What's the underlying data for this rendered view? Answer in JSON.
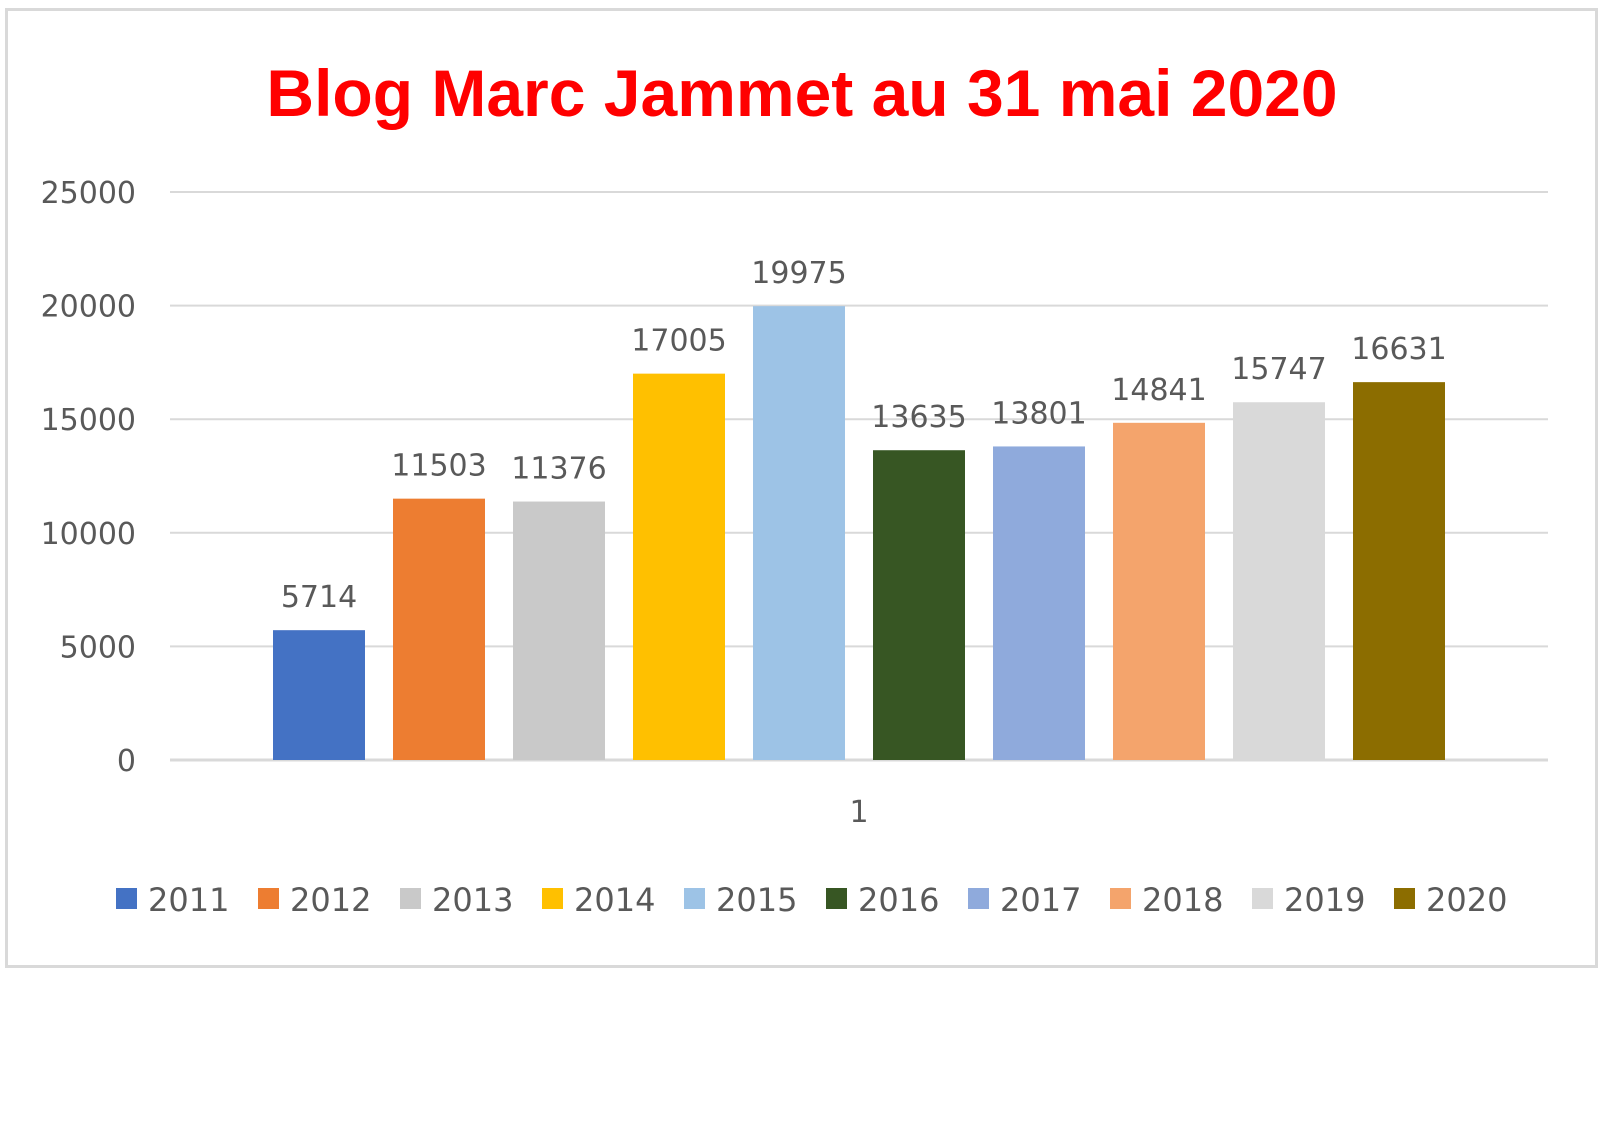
{
  "chart_data": {
    "type": "bar",
    "title": "Blog Marc Jammet au 31 mai 2020",
    "categories": [
      "1"
    ],
    "ylim": [
      0,
      25000
    ],
    "yticks": [
      "0",
      "5000",
      "10000",
      "15000",
      "20000",
      "25000"
    ],
    "grid": true,
    "legend_position": "bottom",
    "title_color": "#ff0000",
    "series": [
      {
        "name": "2011",
        "values": [
          5714
        ],
        "color": "#4472c4"
      },
      {
        "name": "2012",
        "values": [
          11503
        ],
        "color": "#ed7d31"
      },
      {
        "name": "2013",
        "values": [
          11376
        ],
        "color": "#c9c9c9"
      },
      {
        "name": "2014",
        "values": [
          17005
        ],
        "color": "#ffc000"
      },
      {
        "name": "2015",
        "values": [
          19975
        ],
        "color": "#9dc3e6"
      },
      {
        "name": "2016",
        "values": [
          13635
        ],
        "color": "#375623"
      },
      {
        "name": "2017",
        "values": [
          13801
        ],
        "color": "#8faadc"
      },
      {
        "name": "2018",
        "values": [
          14841
        ],
        "color": "#f4a46c"
      },
      {
        "name": "2019",
        "values": [
          15747
        ],
        "color": "#d9d9d9"
      },
      {
        "name": "2020",
        "values": [
          16631
        ],
        "color": "#8c6d00"
      }
    ]
  }
}
